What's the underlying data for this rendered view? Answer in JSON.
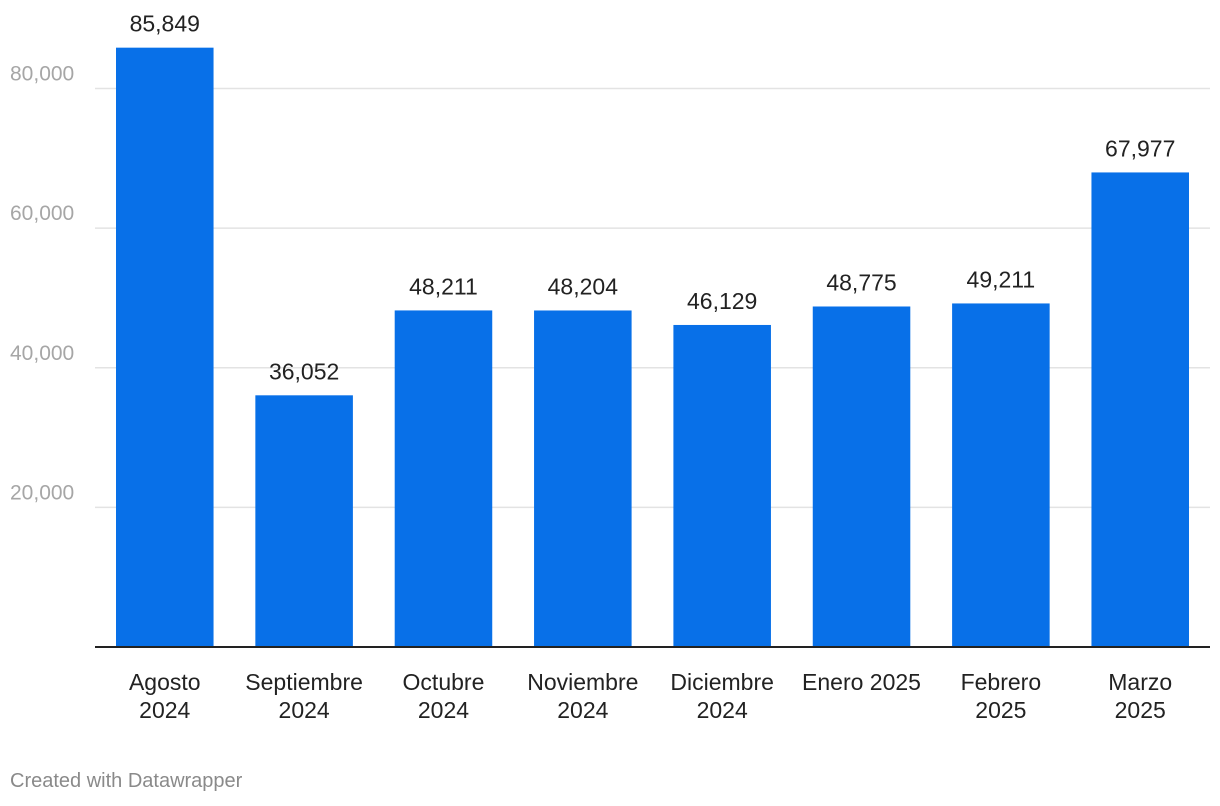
{
  "chart_data": {
    "type": "bar",
    "title": "",
    "xlabel": "",
    "ylabel": "",
    "categories": [
      [
        "Agosto",
        "2024"
      ],
      [
        "Septiembre",
        "2024"
      ],
      [
        "Octubre",
        "2024"
      ],
      [
        "Noviembre",
        "2024"
      ],
      [
        "Diciembre",
        "2024"
      ],
      [
        "Enero 2025"
      ],
      [
        "Febrero",
        "2025"
      ],
      [
        "Marzo",
        "2025"
      ]
    ],
    "values": [
      85849,
      36052,
      48211,
      48204,
      46129,
      48775,
      49211,
      67977
    ],
    "value_labels": [
      "85,849",
      "36,052",
      "48,211",
      "48,204",
      "46,129",
      "48,775",
      "49,211",
      "67,977"
    ],
    "ylim": [
      0,
      92000
    ],
    "yticks": [
      20000,
      40000,
      60000,
      80000
    ],
    "ytick_labels": [
      "20,000",
      "40,000",
      "60,000",
      "80,000"
    ],
    "grid": true,
    "bar_color": "#0870e8"
  },
  "footer": {
    "credit": "Created with Datawrapper"
  }
}
